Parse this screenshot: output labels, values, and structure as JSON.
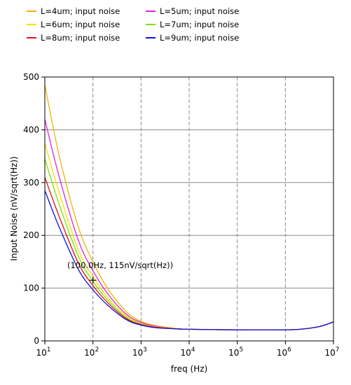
{
  "chart_data": {
    "type": "line",
    "title": "",
    "xlabel": "freq (Hz)",
    "ylabel": "Input Noise (nV/sqrt(Hz))",
    "x_scale": "log",
    "xlim": [
      10,
      10000000
    ],
    "ylim": [
      0,
      500
    ],
    "grid": true,
    "legend_position": "top-left",
    "x_ticks": [
      {
        "base": "10",
        "exp": "1",
        "value": 10
      },
      {
        "base": "10",
        "exp": "2",
        "value": 100
      },
      {
        "base": "10",
        "exp": "3",
        "value": 1000
      },
      {
        "base": "10",
        "exp": "4",
        "value": 10000
      },
      {
        "base": "10",
        "exp": "5",
        "value": 100000
      },
      {
        "base": "10",
        "exp": "6",
        "value": 1000000
      },
      {
        "base": "10",
        "exp": "7",
        "value": 10000000
      }
    ],
    "y_ticks": [
      "0",
      "100",
      "200",
      "300",
      "400",
      "500"
    ],
    "y_tick_values": [
      0,
      100,
      200,
      300,
      400,
      500
    ],
    "x": [
      10,
      20,
      50,
      100,
      200,
      500,
      1000,
      2000,
      5000,
      10000,
      100000,
      1000000,
      2000000,
      5000000,
      10000000
    ],
    "series": [
      {
        "name": "L=4um; input noise",
        "color": "#f0b400",
        "values": [
          485,
          350,
          215,
          150,
          100,
          55,
          37,
          29,
          24,
          22,
          21,
          21,
          22,
          27,
          36
        ]
      },
      {
        "name": "L=5um; input noise",
        "color": "#e020e0",
        "values": [
          420,
          310,
          190,
          133,
          90,
          50,
          35,
          28,
          23,
          22,
          21,
          21,
          22,
          27,
          36
        ]
      },
      {
        "name": "L=6um; input noise",
        "color": "#e8e800",
        "values": [
          375,
          280,
          172,
          122,
          83,
          47,
          33,
          27,
          23,
          22,
          21,
          21,
          22,
          27,
          36
        ]
      },
      {
        "name": "L=7um; input noise",
        "color": "#80e000",
        "values": [
          345,
          258,
          160,
          113,
          78,
          44,
          32,
          26,
          23,
          22,
          21,
          21,
          22,
          27,
          36
        ]
      },
      {
        "name": "L=8um; input noise",
        "color": "#e01010",
        "values": [
          310,
          235,
          147,
          105,
          73,
          42,
          31,
          26,
          23,
          22,
          21,
          21,
          22,
          27,
          36
        ]
      },
      {
        "name": "L=9um; input noise",
        "color": "#1010e0",
        "values": [
          285,
          215,
          135,
          97,
          68,
          40,
          30,
          25,
          23,
          22,
          21,
          21,
          22,
          27,
          36
        ]
      }
    ],
    "annotation": {
      "text": "(100.0Hz, 115nV/sqrt(Hz))",
      "x": 100,
      "y": 115
    }
  }
}
